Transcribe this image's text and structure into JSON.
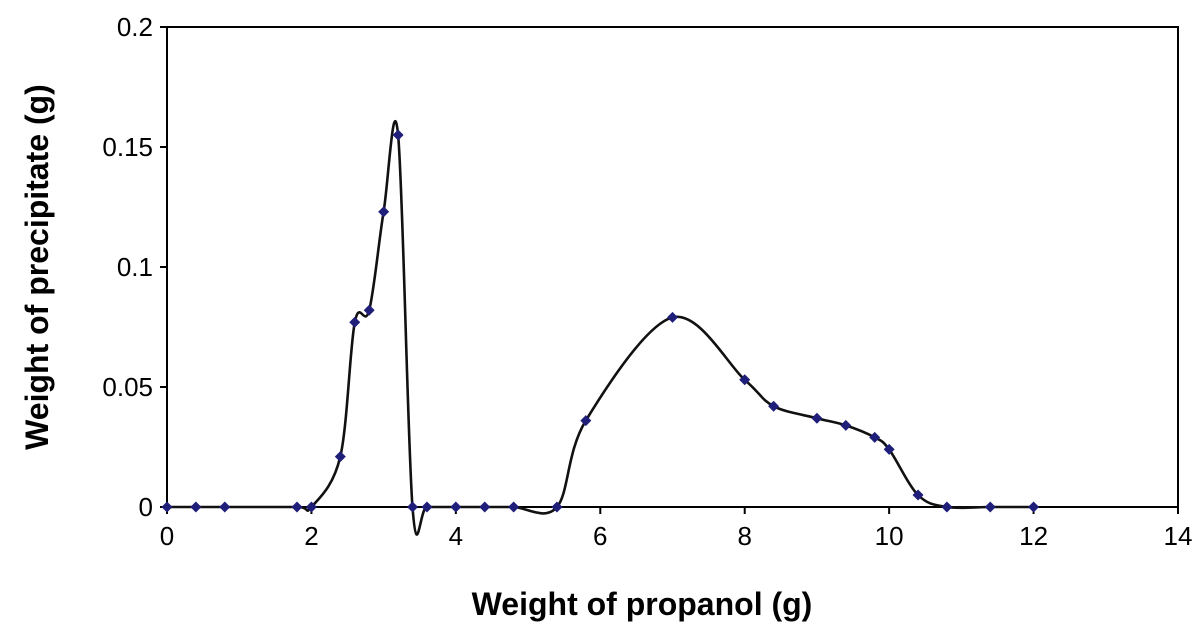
{
  "chart_data": {
    "type": "scatter",
    "title": "",
    "xlabel": "Weight of propanol (g)",
    "ylabel": "Weight of precipitate (g)",
    "xlim": [
      0,
      14
    ],
    "ylim": [
      0,
      0.2
    ],
    "xticks": [
      0,
      2,
      4,
      6,
      8,
      10,
      12,
      14
    ],
    "yticks": [
      0,
      0.05,
      0.1,
      0.15,
      0.2
    ],
    "xtick_labels": [
      "0",
      "2",
      "4",
      "6",
      "8",
      "10",
      "12",
      "14"
    ],
    "ytick_labels": [
      "0",
      "0.05",
      "0.1",
      "0.15",
      "0.2"
    ],
    "grid": false,
    "legend": "none",
    "marker_color": "#1f1f7a",
    "line_color": "#111111",
    "series": [
      {
        "points": [
          [
            0.0,
            0.0
          ],
          [
            0.4,
            0.0
          ],
          [
            0.8,
            0.0
          ],
          [
            1.8,
            0.0
          ],
          [
            2.0,
            0.0
          ],
          [
            2.4,
            0.021
          ],
          [
            2.6,
            0.077
          ],
          [
            2.8,
            0.082
          ],
          [
            3.0,
            0.123
          ],
          [
            3.2,
            0.155
          ],
          [
            3.4,
            0.0
          ],
          [
            3.6,
            0.0
          ],
          [
            4.0,
            0.0
          ],
          [
            4.4,
            0.0
          ],
          [
            4.8,
            0.0
          ],
          [
            5.4,
            0.0
          ],
          [
            5.8,
            0.036
          ],
          [
            7.0,
            0.079
          ],
          [
            8.0,
            0.053
          ],
          [
            8.4,
            0.042
          ],
          [
            9.0,
            0.037
          ],
          [
            9.4,
            0.034
          ],
          [
            9.8,
            0.029
          ],
          [
            10.0,
            0.024
          ],
          [
            10.4,
            0.005
          ],
          [
            10.8,
            0.0
          ],
          [
            11.4,
            0.0
          ],
          [
            12.0,
            0.0
          ]
        ]
      }
    ]
  }
}
